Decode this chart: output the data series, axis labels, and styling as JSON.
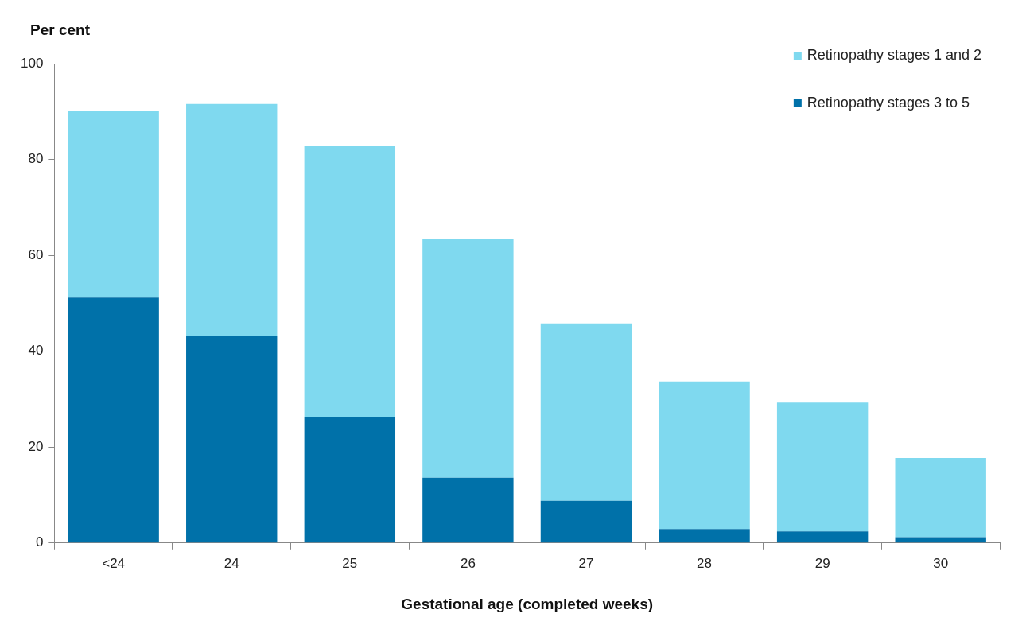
{
  "chart_data": {
    "type": "bar",
    "stacked": true,
    "xlabel": "Gestational age (completed weeks)",
    "ylabel": "Per cent",
    "categories": [
      "<24",
      "24",
      "25",
      "26",
      "27",
      "28",
      "29",
      "30"
    ],
    "series": [
      {
        "name": "Retinopathy stages 3 to 5",
        "color": "#0071a9",
        "values": [
          51.2,
          43.1,
          26.3,
          13.6,
          8.8,
          2.9,
          2.4,
          1.2
        ]
      },
      {
        "name": "Retinopathy stages 1 and 2",
        "color": "#7fd9ef",
        "values": [
          39.0,
          48.5,
          56.5,
          49.9,
          37.0,
          30.8,
          26.9,
          16.5
        ]
      }
    ],
    "ylim": [
      0,
      100
    ],
    "yticks": [
      0,
      20,
      40,
      60,
      80,
      100
    ],
    "grid": false,
    "legend": "top right"
  }
}
